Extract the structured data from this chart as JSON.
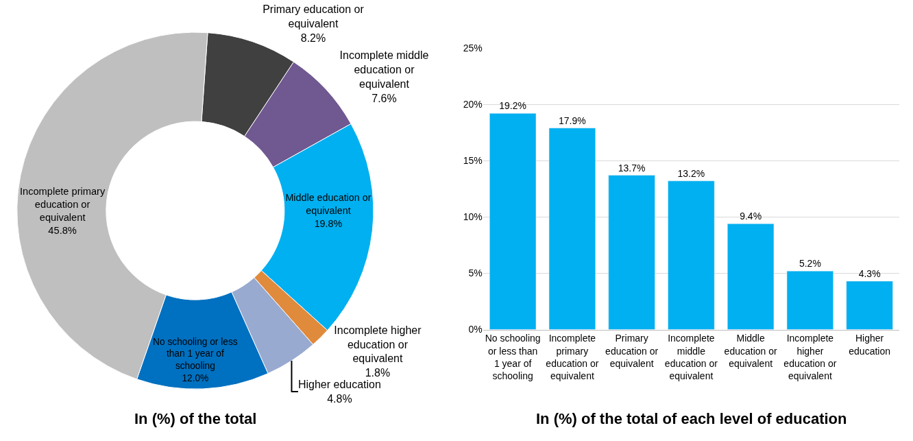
{
  "chart_data": [
    {
      "type": "donut",
      "title": "In (%) of the total",
      "categories": [
        "Primary education or equivalent",
        "Incomplete middle education or equivalent",
        "Middle education or equivalent",
        "Incomplete higher education or equivalent",
        "Higher education",
        "No schooling or less than 1 year of schooling",
        "Incomplete primary education or equivalent"
      ],
      "values": [
        8.2,
        7.6,
        19.8,
        1.8,
        4.8,
        12.0,
        45.8
      ],
      "value_labels": [
        "8.2%",
        "7.6%",
        "19.8%",
        "1.8%",
        "4.8%",
        "12.0%",
        "45.8%"
      ],
      "colors": [
        "#404040",
        "#705890",
        "#00b0f0",
        "#e08a3c",
        "#99aad0",
        "#0070c0",
        "#bfbfbf"
      ]
    },
    {
      "type": "bar",
      "title": "In (%) of the total of each level of education",
      "categories": [
        "No schooling or less than 1 year of schooling",
        "Incomplete primary education or equivalent",
        "Primary education or equivalent",
        "Incomplete middle education or equivalent",
        "Middle education or equivalent",
        "Incomplete higher education or equivalent",
        "Higher education"
      ],
      "values": [
        19.2,
        17.9,
        13.7,
        13.2,
        9.4,
        5.2,
        4.3
      ],
      "value_labels": [
        "19.2%",
        "17.9%",
        "13.7%",
        "13.2%",
        "9.4%",
        "5.2%",
        "4.3%"
      ],
      "color": "#00b0f0",
      "ylim": [
        0,
        25
      ],
      "yticks": [
        {
          "value": 0,
          "label": "0%"
        },
        {
          "value": 5,
          "label": "5%"
        },
        {
          "value": 10,
          "label": "10%"
        },
        {
          "value": 15,
          "label": "15%"
        },
        {
          "value": 20,
          "label": "20%"
        },
        {
          "value": 25,
          "label": "25%"
        }
      ],
      "grid": "y"
    }
  ]
}
